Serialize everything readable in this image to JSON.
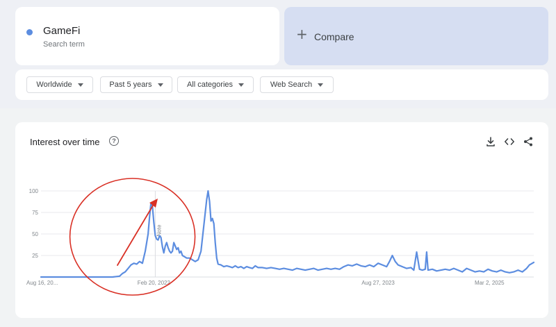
{
  "search_term": {
    "name": "GameFi",
    "subtitle": "Search term",
    "color": "#5c8de0"
  },
  "compare": {
    "label": "Compare"
  },
  "filters": [
    {
      "label": "Worldwide"
    },
    {
      "label": "Past 5 years"
    },
    {
      "label": "All categories"
    },
    {
      "label": "Web Search"
    }
  ],
  "card": {
    "title": "Interest over time",
    "help_icon": "help-circle-icon",
    "actions": [
      "download-icon",
      "embed-code-icon",
      "share-icon"
    ]
  },
  "chart_data": {
    "type": "line",
    "title": "",
    "xlabel": "",
    "ylabel": "",
    "ylim": [
      0,
      100
    ],
    "yticks": [
      25,
      50,
      75,
      100
    ],
    "xtick_labels": [
      "Aug 16, 20...",
      "Feb 20, 2022",
      "Aug 27, 2023",
      "Mar 2, 2025"
    ],
    "xtick_weeks": [
      0,
      79,
      236,
      314
    ],
    "grid": true,
    "line_color": "#5c8de0",
    "annotation": {
      "label": "Note",
      "week": 80
    },
    "overlay": {
      "type": "hand-drawn red circle with arrow",
      "color": "#d93025",
      "week_range": [
        30,
        100
      ]
    },
    "series": [
      {
        "points": [
          [
            0,
            0
          ],
          [
            10,
            0
          ],
          [
            20,
            0
          ],
          [
            30,
            0
          ],
          [
            40,
            0
          ],
          [
            50,
            0
          ],
          [
            55,
            1
          ],
          [
            57,
            4
          ],
          [
            59,
            6
          ],
          [
            61,
            10
          ],
          [
            63,
            14
          ],
          [
            65,
            16
          ],
          [
            67,
            15
          ],
          [
            69,
            18
          ],
          [
            71,
            16
          ],
          [
            73,
            30
          ],
          [
            75,
            50
          ],
          [
            76,
            70
          ],
          [
            77,
            86
          ],
          [
            78,
            82
          ],
          [
            79,
            63
          ],
          [
            80,
            48
          ],
          [
            81,
            44
          ],
          [
            82,
            43
          ],
          [
            83,
            48
          ],
          [
            84,
            46
          ],
          [
            85,
            35
          ],
          [
            86,
            28
          ],
          [
            87,
            36
          ],
          [
            88,
            40
          ],
          [
            89,
            34
          ],
          [
            90,
            30
          ],
          [
            91,
            28
          ],
          [
            92,
            30
          ],
          [
            93,
            40
          ],
          [
            94,
            36
          ],
          [
            95,
            32
          ],
          [
            96,
            34
          ],
          [
            97,
            28
          ],
          [
            98,
            30
          ],
          [
            99,
            25
          ],
          [
            100,
            24
          ],
          [
            102,
            22
          ],
          [
            104,
            22
          ],
          [
            106,
            20
          ],
          [
            108,
            18
          ],
          [
            110,
            20
          ],
          [
            112,
            30
          ],
          [
            114,
            60
          ],
          [
            116,
            90
          ],
          [
            117,
            100
          ],
          [
            118,
            88
          ],
          [
            119,
            65
          ],
          [
            120,
            68
          ],
          [
            121,
            62
          ],
          [
            122,
            40
          ],
          [
            123,
            22
          ],
          [
            124,
            15
          ],
          [
            126,
            14
          ],
          [
            128,
            12
          ],
          [
            130,
            13
          ],
          [
            132,
            12
          ],
          [
            134,
            11
          ],
          [
            136,
            13
          ],
          [
            138,
            11
          ],
          [
            140,
            12
          ],
          [
            142,
            10
          ],
          [
            144,
            12
          ],
          [
            146,
            11
          ],
          [
            148,
            10
          ],
          [
            150,
            13
          ],
          [
            152,
            11
          ],
          [
            155,
            11
          ],
          [
            158,
            10
          ],
          [
            161,
            11
          ],
          [
            164,
            10
          ],
          [
            167,
            9
          ],
          [
            170,
            10
          ],
          [
            173,
            9
          ],
          [
            176,
            8
          ],
          [
            179,
            10
          ],
          [
            182,
            9
          ],
          [
            185,
            8
          ],
          [
            188,
            9
          ],
          [
            191,
            10
          ],
          [
            194,
            8
          ],
          [
            197,
            9
          ],
          [
            200,
            10
          ],
          [
            203,
            9
          ],
          [
            206,
            10
          ],
          [
            209,
            9
          ],
          [
            212,
            12
          ],
          [
            215,
            14
          ],
          [
            218,
            13
          ],
          [
            221,
            15
          ],
          [
            224,
            13
          ],
          [
            227,
            12
          ],
          [
            230,
            14
          ],
          [
            233,
            12
          ],
          [
            236,
            16
          ],
          [
            239,
            14
          ],
          [
            242,
            12
          ],
          [
            244,
            18
          ],
          [
            246,
            25
          ],
          [
            248,
            18
          ],
          [
            250,
            14
          ],
          [
            253,
            12
          ],
          [
            256,
            10
          ],
          [
            259,
            11
          ],
          [
            261,
            8
          ],
          [
            263,
            29
          ],
          [
            265,
            9
          ],
          [
            267,
            8
          ],
          [
            269,
            9
          ],
          [
            270,
            29
          ],
          [
            271,
            8
          ],
          [
            274,
            9
          ],
          [
            277,
            7
          ],
          [
            280,
            8
          ],
          [
            283,
            9
          ],
          [
            286,
            8
          ],
          [
            289,
            10
          ],
          [
            292,
            8
          ],
          [
            295,
            6
          ],
          [
            298,
            10
          ],
          [
            301,
            8
          ],
          [
            304,
            6
          ],
          [
            307,
            7
          ],
          [
            310,
            6
          ],
          [
            313,
            9
          ],
          [
            316,
            7
          ],
          [
            319,
            6
          ],
          [
            322,
            8
          ],
          [
            325,
            6
          ],
          [
            328,
            5
          ],
          [
            331,
            6
          ],
          [
            334,
            8
          ],
          [
            337,
            6
          ],
          [
            340,
            10
          ],
          [
            342,
            14
          ],
          [
            344,
            16
          ],
          [
            345,
            17
          ]
        ]
      }
    ]
  }
}
